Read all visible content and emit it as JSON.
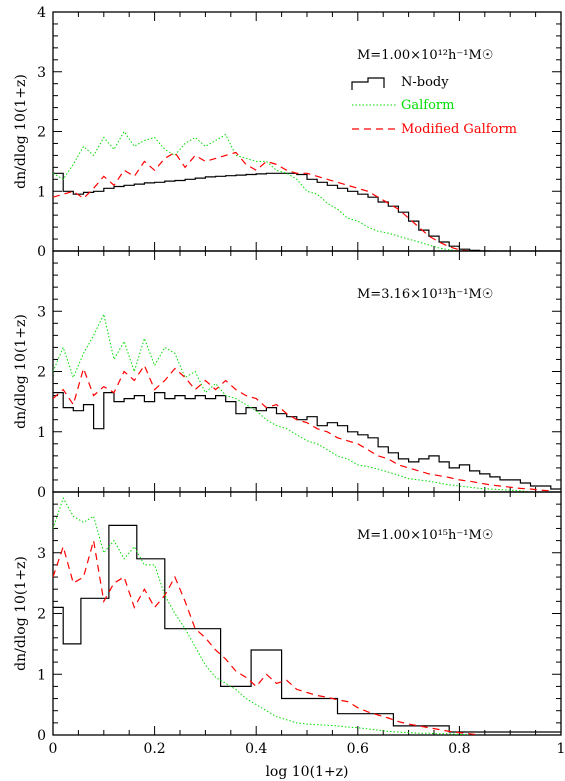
{
  "chart_data": {
    "type": "line",
    "xlabel": "log 10(1+z)",
    "x_ticks": [
      "0",
      "0.2",
      "0.4",
      "0.6",
      "0.8",
      "1"
    ],
    "xlim": [
      0,
      1
    ],
    "legend": {
      "placement": "top-right",
      "entries": [
        {
          "name": "N-body",
          "color": "#000000",
          "style": "solid-step"
        },
        {
          "name": "Galform",
          "color": "#00dd00",
          "style": "dotted"
        },
        {
          "name": "Modified Galform",
          "color": "#ff0000",
          "style": "dashed"
        }
      ]
    },
    "panels": [
      {
        "label": "M=1.00×10¹²h⁻¹M☉",
        "ylabel": "dn/dlog 10(1+z)",
        "ylim": [
          0,
          4
        ],
        "y_ticks": [
          "0",
          "1",
          "2",
          "3",
          "4"
        ],
        "series": [
          {
            "name": "N-body",
            "kind": "step",
            "x": [
              0,
              0.02,
              0.04,
              0.06,
              0.08,
              0.1,
              0.12,
              0.14,
              0.16,
              0.18,
              0.2,
              0.22,
              0.24,
              0.26,
              0.28,
              0.3,
              0.32,
              0.34,
              0.36,
              0.38,
              0.4,
              0.42,
              0.44,
              0.46,
              0.48,
              0.5,
              0.52,
              0.54,
              0.56,
              0.58,
              0.6,
              0.62,
              0.64,
              0.66,
              0.68,
              0.7,
              0.72,
              0.74,
              0.76,
              0.78,
              0.8,
              0.82,
              0.84
            ],
            "values": [
              1.3,
              1.0,
              0.95,
              0.98,
              1.0,
              1.05,
              1.08,
              1.1,
              1.12,
              1.14,
              1.15,
              1.17,
              1.18,
              1.2,
              1.22,
              1.24,
              1.25,
              1.26,
              1.27,
              1.28,
              1.29,
              1.3,
              1.3,
              1.3,
              1.28,
              1.2,
              1.15,
              1.1,
              1.05,
              1.0,
              0.95,
              0.9,
              0.82,
              0.75,
              0.65,
              0.5,
              0.35,
              0.25,
              0.15,
              0.08,
              0.03,
              0.01,
              0
            ]
          },
          {
            "name": "Galform",
            "kind": "dotted",
            "x": [
              0,
              0.02,
              0.04,
              0.06,
              0.08,
              0.1,
              0.12,
              0.14,
              0.16,
              0.18,
              0.2,
              0.22,
              0.24,
              0.26,
              0.28,
              0.3,
              0.32,
              0.34,
              0.36,
              0.38,
              0.4,
              0.42,
              0.44,
              0.46,
              0.48,
              0.5,
              0.52,
              0.54,
              0.56,
              0.58,
              0.6,
              0.62,
              0.64,
              0.66,
              0.68,
              0.7,
              0.72,
              0.74,
              0.76,
              0.78,
              0.8
            ],
            "values": [
              1.3,
              1.2,
              1.45,
              1.75,
              1.6,
              1.9,
              1.7,
              2.0,
              1.75,
              1.85,
              1.9,
              1.7,
              1.6,
              1.8,
              1.9,
              1.75,
              1.85,
              1.95,
              1.6,
              1.55,
              1.5,
              1.5,
              1.35,
              1.3,
              1.2,
              1.0,
              0.95,
              0.8,
              0.7,
              0.55,
              0.5,
              0.4,
              0.33,
              0.3,
              0.25,
              0.2,
              0.15,
              0.1,
              0.05,
              0.02,
              0
            ]
          },
          {
            "name": "Modified Galform",
            "kind": "dashed",
            "x": [
              0,
              0.02,
              0.04,
              0.06,
              0.08,
              0.1,
              0.12,
              0.14,
              0.16,
              0.18,
              0.2,
              0.22,
              0.24,
              0.26,
              0.28,
              0.3,
              0.32,
              0.34,
              0.36,
              0.38,
              0.4,
              0.42,
              0.44,
              0.46,
              0.48,
              0.5,
              0.52,
              0.54,
              0.56,
              0.58,
              0.6,
              0.62,
              0.64,
              0.66,
              0.68,
              0.7,
              0.72,
              0.74,
              0.76,
              0.78,
              0.8,
              0.82
            ],
            "values": [
              0.9,
              0.95,
              1.0,
              0.88,
              1.05,
              1.25,
              1.1,
              1.35,
              1.25,
              1.5,
              1.35,
              1.55,
              1.65,
              1.4,
              1.6,
              1.5,
              1.55,
              1.6,
              1.65,
              1.45,
              1.35,
              1.5,
              1.45,
              1.35,
              1.3,
              1.3,
              1.25,
              1.2,
              1.15,
              1.1,
              1.05,
              1.0,
              0.9,
              0.8,
              0.7,
              0.55,
              0.4,
              0.25,
              0.15,
              0.07,
              0.02,
              0
            ]
          }
        ]
      },
      {
        "label": "M=3.16×10¹³h⁻¹M☉",
        "ylabel": "dn/dlog 10(1+z)",
        "ylim": [
          0,
          4
        ],
        "y_ticks": [
          "0",
          "1",
          "2",
          "3"
        ],
        "series": [
          {
            "name": "N-body",
            "kind": "step",
            "x": [
              0,
              0.02,
              0.04,
              0.06,
              0.08,
              0.1,
              0.12,
              0.14,
              0.16,
              0.18,
              0.2,
              0.22,
              0.24,
              0.26,
              0.28,
              0.3,
              0.32,
              0.34,
              0.36,
              0.38,
              0.4,
              0.42,
              0.44,
              0.46,
              0.48,
              0.5,
              0.52,
              0.54,
              0.56,
              0.58,
              0.6,
              0.62,
              0.64,
              0.66,
              0.68,
              0.7,
              0.72,
              0.74,
              0.76,
              0.78,
              0.8,
              0.82,
              0.84,
              0.86,
              0.88,
              0.9,
              0.92,
              0.94,
              0.96,
              0.98,
              1.0
            ],
            "values": [
              1.65,
              1.4,
              1.35,
              1.45,
              1.05,
              1.65,
              1.5,
              1.55,
              1.6,
              1.5,
              1.65,
              1.55,
              1.6,
              1.55,
              1.6,
              1.55,
              1.6,
              1.5,
              1.3,
              1.4,
              1.35,
              1.4,
              1.3,
              1.25,
              1.2,
              1.25,
              1.1,
              1.15,
              1.1,
              1.0,
              0.95,
              0.9,
              0.75,
              0.65,
              0.55,
              0.5,
              0.55,
              0.6,
              0.5,
              0.4,
              0.45,
              0.35,
              0.3,
              0.25,
              0.2,
              0.2,
              0.15,
              0.1,
              0.1,
              0.05,
              0.05
            ]
          },
          {
            "name": "Galform",
            "kind": "dotted",
            "x": [
              0,
              0.02,
              0.04,
              0.06,
              0.08,
              0.1,
              0.12,
              0.14,
              0.16,
              0.18,
              0.2,
              0.22,
              0.24,
              0.26,
              0.28,
              0.3,
              0.32,
              0.34,
              0.36,
              0.38,
              0.4,
              0.42,
              0.44,
              0.46,
              0.48,
              0.5,
              0.52,
              0.54,
              0.56,
              0.58,
              0.6,
              0.62,
              0.64,
              0.66,
              0.68,
              0.7,
              0.72,
              0.74,
              0.76,
              0.78,
              0.8,
              0.82,
              0.84,
              0.86,
              0.88,
              0.9,
              0.92,
              0.94
            ],
            "values": [
              2.0,
              2.4,
              1.9,
              2.3,
              2.6,
              2.95,
              2.2,
              2.5,
              2.0,
              2.55,
              2.1,
              2.4,
              2.3,
              1.9,
              2.0,
              1.65,
              1.8,
              1.6,
              1.55,
              1.45,
              1.35,
              1.2,
              1.1,
              1.05,
              0.95,
              0.85,
              0.8,
              0.7,
              0.6,
              0.55,
              0.45,
              0.42,
              0.38,
              0.33,
              0.28,
              0.22,
              0.2,
              0.18,
              0.15,
              0.12,
              0.1,
              0.08,
              0.06,
              0.05,
              0.04,
              0.03,
              0.02,
              0
            ]
          },
          {
            "name": "Modified Galform",
            "kind": "dashed",
            "x": [
              0,
              0.02,
              0.04,
              0.06,
              0.08,
              0.1,
              0.12,
              0.14,
              0.16,
              0.18,
              0.2,
              0.22,
              0.24,
              0.26,
              0.28,
              0.3,
              0.32,
              0.34,
              0.36,
              0.38,
              0.4,
              0.42,
              0.44,
              0.46,
              0.48,
              0.5,
              0.52,
              0.54,
              0.56,
              0.58,
              0.6,
              0.62,
              0.64,
              0.66,
              0.68,
              0.7,
              0.72,
              0.74,
              0.76,
              0.78,
              0.8,
              0.82,
              0.84,
              0.86,
              0.88,
              0.9,
              0.92,
              0.94,
              0.96,
              0.98
            ],
            "values": [
              1.55,
              1.7,
              1.45,
              2.05,
              1.6,
              1.75,
              1.65,
              2.0,
              1.85,
              2.1,
              1.7,
              1.85,
              2.05,
              1.9,
              1.7,
              1.85,
              1.7,
              1.85,
              1.7,
              1.6,
              1.55,
              1.4,
              1.45,
              1.3,
              1.2,
              1.15,
              1.05,
              1.0,
              0.9,
              0.85,
              0.8,
              0.7,
              0.6,
              0.55,
              0.45,
              0.4,
              0.35,
              0.3,
              0.27,
              0.24,
              0.2,
              0.18,
              0.15,
              0.12,
              0.1,
              0.08,
              0.06,
              0.05,
              0.03,
              0.02
            ]
          }
        ]
      },
      {
        "label": "M=1.00×10¹⁵h⁻¹M☉",
        "ylabel": "dn/dlog 10(1+z)",
        "ylim": [
          0,
          4
        ],
        "y_ticks": [
          "0",
          "1",
          "2",
          "3"
        ],
        "series": [
          {
            "name": "N-body",
            "kind": "step",
            "x": [
              0,
              0.02,
              0.055,
              0.11,
              0.165,
              0.22,
              0.28,
              0.33,
              0.39,
              0.45,
              0.56,
              0.67,
              0.78,
              0.89,
              1.0
            ],
            "values": [
              2.1,
              1.5,
              2.25,
              3.45,
              2.9,
              1.75,
              1.75,
              0.8,
              1.4,
              0.6,
              0.35,
              0.15,
              0.05,
              0.05,
              0.05
            ]
          },
          {
            "name": "Galform",
            "kind": "dotted",
            "x": [
              0,
              0.02,
              0.04,
              0.06,
              0.08,
              0.1,
              0.12,
              0.14,
              0.16,
              0.18,
              0.2,
              0.22,
              0.24,
              0.26,
              0.28,
              0.3,
              0.32,
              0.34,
              0.36,
              0.38,
              0.4,
              0.42,
              0.44,
              0.46,
              0.48,
              0.5,
              0.52,
              0.54,
              0.56,
              0.58,
              0.6,
              0.62,
              0.64,
              0.66,
              0.68,
              0.7,
              0.72,
              0.74,
              0.76,
              0.78,
              0.8,
              0.82
            ],
            "values": [
              3.4,
              3.9,
              3.6,
              3.5,
              3.6,
              3.0,
              3.2,
              2.9,
              3.1,
              2.8,
              2.8,
              2.3,
              2.0,
              1.75,
              1.45,
              1.15,
              0.95,
              0.85,
              0.75,
              0.6,
              0.5,
              0.4,
              0.3,
              0.25,
              0.2,
              0.18,
              0.17,
              0.16,
              0.15,
              0.13,
              0.12,
              0.1,
              0.08,
              0.06,
              0.05,
              0.04,
              0.03,
              0.03,
              0.02,
              0.02,
              0.01,
              0
            ]
          },
          {
            "name": "Modified Galform",
            "kind": "dashed",
            "x": [
              0,
              0.02,
              0.04,
              0.06,
              0.08,
              0.1,
              0.12,
              0.14,
              0.16,
              0.18,
              0.2,
              0.22,
              0.24,
              0.26,
              0.28,
              0.3,
              0.32,
              0.34,
              0.36,
              0.38,
              0.4,
              0.42,
              0.44,
              0.46,
              0.48,
              0.5,
              0.52,
              0.54,
              0.56,
              0.58,
              0.6,
              0.62,
              0.64,
              0.66,
              0.68,
              0.7,
              0.72,
              0.74,
              0.76,
              0.78,
              0.8,
              0.82,
              0.84
            ],
            "values": [
              2.6,
              3.1,
              2.5,
              2.6,
              3.2,
              2.2,
              2.5,
              2.6,
              2.1,
              2.4,
              2.1,
              2.3,
              2.6,
              2.2,
              1.75,
              1.6,
              1.4,
              1.25,
              1.05,
              0.95,
              0.8,
              1.0,
              0.85,
              0.9,
              0.75,
              0.7,
              0.65,
              0.62,
              0.58,
              0.55,
              0.45,
              0.38,
              0.33,
              0.28,
              0.22,
              0.18,
              0.15,
              0.12,
              0.09,
              0.06,
              0.04,
              0.02,
              0
            ]
          }
        ]
      }
    ]
  }
}
